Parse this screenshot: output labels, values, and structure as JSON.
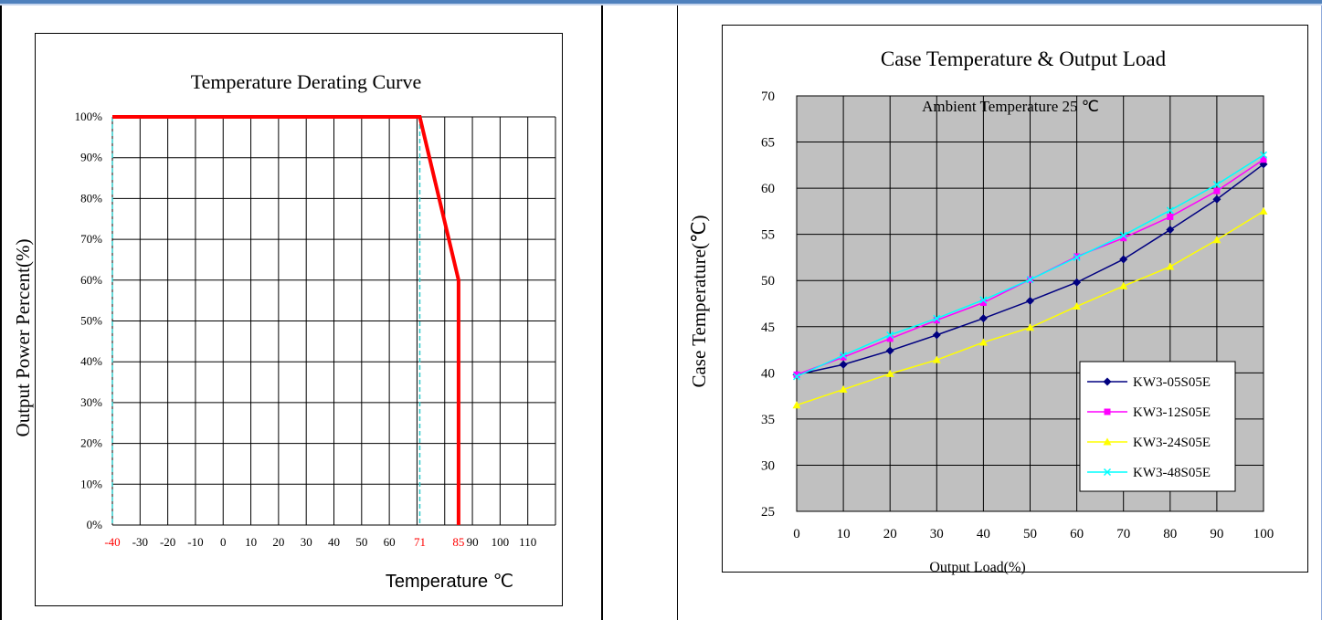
{
  "chart_data": [
    {
      "type": "line",
      "title": "Temperature Derating Curve",
      "xlabel": "Temperature ℃",
      "ylabel": "Output Power Percent(%)",
      "x_ticks": [
        -40,
        -30,
        -20,
        -10,
        0,
        10,
        20,
        30,
        40,
        50,
        60,
        71,
        85,
        90,
        100,
        110
      ],
      "x_ticks_highlight": [
        -40,
        71,
        85
      ],
      "x_ticks_highlight_color": "#ff0000",
      "y_ticks": [
        "0%",
        "10%",
        "20%",
        "30%",
        "40%",
        "50%",
        "60%",
        "70%",
        "80%",
        "90%",
        "100%"
      ],
      "xlim": [
        -40,
        120
      ],
      "ylim": [
        0,
        100
      ],
      "grid": true,
      "series": [
        {
          "color": "#ff0000",
          "x": [
            -40,
            71,
            85,
            85
          ],
          "y": [
            100,
            100,
            60,
            0
          ]
        }
      ],
      "reference_lines": {
        "x": [
          -40,
          71
        ],
        "color": "#33cccc",
        "style": "dashed"
      }
    },
    {
      "type": "line",
      "title": "Case Temperature & Output Load",
      "subtitle": "Ambient Temperature 25 ℃",
      "xlabel": "Output Load(%)",
      "ylabel": "Case Temperature(℃)",
      "x": [
        0,
        10,
        20,
        30,
        40,
        50,
        60,
        70,
        80,
        90,
        100
      ],
      "xlim": [
        0,
        100
      ],
      "ylim": [
        25,
        70
      ],
      "y_ticks": [
        25,
        30,
        35,
        40,
        45,
        50,
        55,
        60,
        65,
        70
      ],
      "grid": true,
      "plot_background": "#c0c0c0",
      "legend_position": "bottom-right",
      "series": [
        {
          "name": "KW3-05S05E",
          "color": "#000080",
          "marker": "diamond",
          "values": [
            39.8,
            40.9,
            42.4,
            44.1,
            45.9,
            47.8,
            49.8,
            52.3,
            55.5,
            58.8,
            62.6
          ]
        },
        {
          "name": "KW3-12S05E",
          "color": "#ff00ff",
          "marker": "square",
          "values": [
            39.8,
            41.7,
            43.7,
            45.7,
            47.6,
            50.1,
            52.6,
            54.6,
            56.9,
            59.7,
            63.1
          ]
        },
        {
          "name": "KW3-24S05E",
          "color": "#ffff00",
          "marker": "triangle",
          "values": [
            36.5,
            38.2,
            39.9,
            41.4,
            43.3,
            44.9,
            47.2,
            49.4,
            51.5,
            54.4,
            57.5
          ]
        },
        {
          "name": "KW3-48S05E",
          "color": "#00ffff",
          "marker": "x",
          "values": [
            39.6,
            41.9,
            44.1,
            45.9,
            47.9,
            50.1,
            52.5,
            54.9,
            57.6,
            60.4,
            63.6
          ]
        }
      ]
    }
  ]
}
